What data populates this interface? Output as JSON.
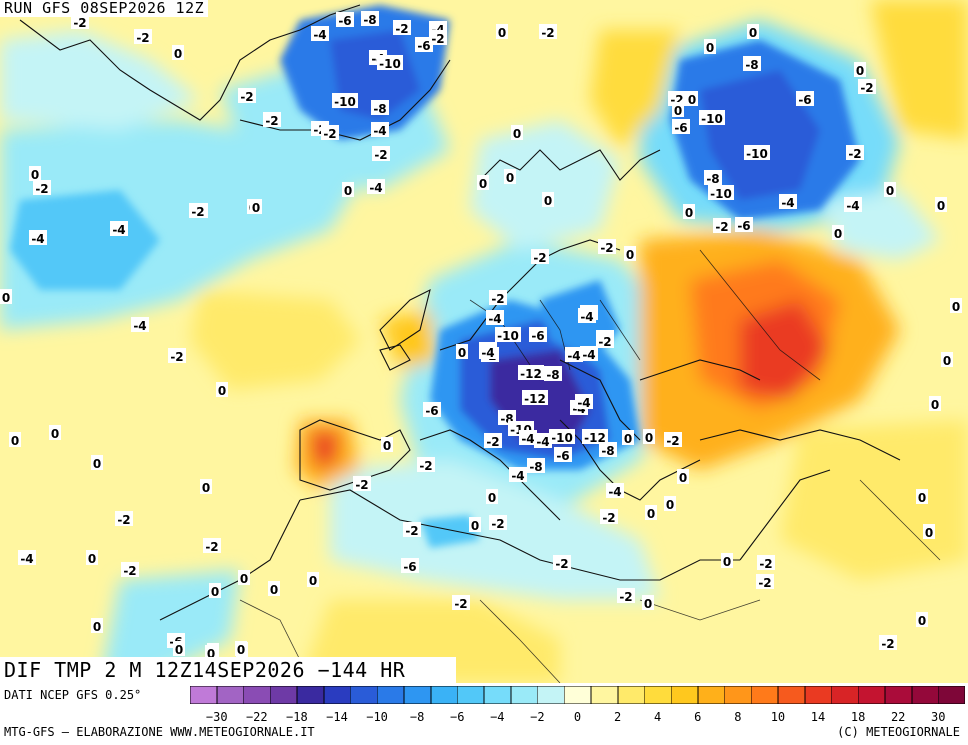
{
  "header": {
    "run_title": "RUN GFS 08SEP2026 12Z"
  },
  "map": {
    "title": "DIF TMP 2 M 12Z14SEP2026 −144 HR",
    "regions": [
      {
        "name": "greenland-cold",
        "value": -10
      },
      {
        "name": "north-atlantic-cold",
        "value": -4
      },
      {
        "name": "russia-north-cold",
        "value": -10
      },
      {
        "name": "central-europe-cold",
        "value": -12
      },
      {
        "name": "balkans-cold",
        "value": -12
      },
      {
        "name": "ukraine-russia-warm",
        "value": 14
      },
      {
        "name": "iberia-warm",
        "value": 10
      },
      {
        "name": "sahara-warm",
        "value": 4
      },
      {
        "name": "atlantic-warm",
        "value": 4
      }
    ],
    "contour_labels": [
      "-2",
      "-6",
      "-8",
      "-4",
      "-2",
      "-4",
      "-2",
      "0",
      "-2",
      "0",
      "-6",
      "-2",
      "0",
      "-4",
      "0",
      "-10",
      "-8",
      "0",
      "-2",
      "-10",
      "-6",
      "0",
      "-2",
      "-8",
      "0",
      "-2",
      "-2",
      "-4",
      "-10",
      "0",
      "-2",
      "0",
      "-6",
      "-2",
      "0",
      "0",
      "-4",
      "-2",
      "-10",
      "-2",
      "0",
      "-2",
      "0",
      "-2",
      "0",
      "-8",
      "0",
      "0",
      "-2",
      "-10",
      "0",
      "-4",
      "0",
      "-2",
      "-4",
      "0",
      "-4",
      "-4",
      "-4",
      "-2",
      "-6",
      "0",
      "0",
      "-2",
      "-2",
      "0",
      "-2",
      "0",
      "-4",
      "-2",
      "-4",
      "-4",
      "-10",
      "-6",
      "-4",
      "-2",
      "0",
      "-2",
      "-4",
      "-2",
      "-12",
      "-8",
      "0",
      "0",
      "-12",
      "-6",
      "-4",
      "-4",
      "0",
      "-8",
      "-4",
      "-2",
      "-10",
      "-4",
      "-10",
      "-12",
      "0",
      "0",
      "-4",
      "-8",
      "-6",
      "-8",
      "0",
      "0",
      "0",
      "-4",
      "-2",
      "-2",
      "-2",
      "0",
      "0",
      "0",
      "-4",
      "0",
      "-2",
      "0",
      "0",
      "-2",
      "0",
      "-2",
      "-2",
      "0",
      "-2",
      "0",
      "-4",
      "-6",
      "-2",
      "-2",
      "0",
      "-2",
      "0",
      "0",
      "0",
      "-2",
      "0",
      "-2",
      "0",
      "-2",
      "0",
      "0",
      "-6",
      "0",
      "0",
      "-2",
      "0",
      "0",
      "0"
    ]
  },
  "legend": {
    "data_source": "DATI NCEP GFS 0.25°",
    "tick_labels": [
      "−30",
      "−22",
      "−18",
      "−14",
      "−10",
      "−8",
      "−6",
      "−4",
      "−2",
      "0",
      "2",
      "4",
      "6",
      "8",
      "10",
      "14",
      "18",
      "22",
      "30"
    ],
    "colors": [
      "#c07ad8",
      "#a264c4",
      "#8a4cb4",
      "#6e3aa6",
      "#3a2aa0",
      "#2a3cc0",
      "#2a5cd8",
      "#2a7ae8",
      "#2e96f2",
      "#3ab2f6",
      "#52c8f8",
      "#76dcfa",
      "#9aeaf8",
      "#c4f4f6",
      "#ffffd8",
      "#fff6a0",
      "#ffea6a",
      "#ffdc3c",
      "#ffc81e",
      "#ffb01a",
      "#ff961a",
      "#ff7a1a",
      "#f65a1e",
      "#ea3a22",
      "#d82426",
      "#c41430",
      "#aa0c3a",
      "#94083a",
      "#7e0638"
    ]
  },
  "footer": {
    "credit_left": "MTG-GFS — ELABORAZIONE WWW.METEOGIORNALE.IT",
    "credit_right": "(C) METEOGIORNALE"
  }
}
